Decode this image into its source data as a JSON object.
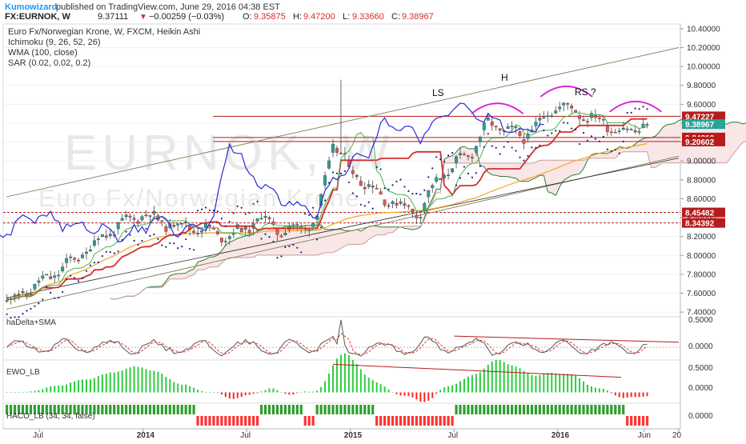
{
  "header": {
    "author": "Kumowizard",
    "published_text": "published on TradingView.com, June 29, 2016 04:38 EST",
    "symbol": "FX:EURNOK, W",
    "last": "9.37111",
    "change_arrow": "▼",
    "change": "−0.00259 (−0.03%)",
    "o_label": "O:",
    "o_value": "9.35875",
    "h_label": "H:",
    "h_value": "9.47200",
    "l_label": "L:",
    "l_value": "9.33660",
    "c_label": "C:",
    "c_value": "9.38967"
  },
  "legend": {
    "title": "Euro Fx/Norwegian Krone, W, FXCM, Heikin Ashi",
    "ichimoku": "Ichimoku (9, 26, 52, 26)",
    "wma": "WMA (100, close)",
    "sar": "SAR (0.02, 0.02, 0.2)"
  },
  "watermark": {
    "symbol": "EURNOK, W",
    "name": "Euro Fx/Norwegian Krone"
  },
  "annotations": {
    "ls": "LS",
    "h": "H",
    "rs": "RS ?"
  },
  "price_axis": {
    "ticks": [
      "10.40000",
      "10.20000",
      "10.00000",
      "9.80000",
      "9.60000",
      "9.40000",
      "9.20000",
      "9.00000",
      "8.80000",
      "8.60000",
      "8.40000",
      "8.20000",
      "8.00000",
      "7.80000",
      "7.60000",
      "7.40000"
    ],
    "tick_values": [
      10.4,
      10.2,
      10.0,
      9.8,
      9.6,
      9.4,
      9.2,
      9.0,
      8.8,
      8.6,
      8.4,
      8.2,
      8.0,
      7.8,
      7.6,
      7.4
    ],
    "labels": [
      {
        "value": "9.47227",
        "price": 9.47227,
        "color": "#b71c1c"
      },
      {
        "value": "9.38967",
        "price": 9.38967,
        "color": "#26a69a"
      },
      {
        "value": "9.24812",
        "price": 9.24812,
        "color": "#b71c1c"
      },
      {
        "value": "9.20602",
        "price": 9.20602,
        "color": "#b71c1c"
      },
      {
        "value": "8.45482",
        "price": 8.45482,
        "color": "#b71c1c"
      },
      {
        "value": "8.34392",
        "price": 8.34392,
        "color": "#b71c1c"
      }
    ]
  },
  "time_axis": {
    "labels": [
      "Jul",
      "2014",
      "Jul",
      "2015",
      "Jul",
      "2016",
      "Jun",
      "20"
    ]
  },
  "panes": {
    "hadelta": {
      "title": "haDelta+SMA",
      "ticks": [
        "0.5000",
        "0.0000"
      ]
    },
    "ewo": {
      "title": "EWO_LB",
      "ticks": [
        "0.5000",
        "0.0000"
      ]
    },
    "haco": {
      "title": "HACO_LB (34, 34, false)",
      "ticks": [
        "0.0000"
      ]
    }
  },
  "chart_data": {
    "type": "candlestick",
    "title": "Euro Fx/Norwegian Krone, W, FXCM, Heikin Ashi",
    "x_range": [
      "2013-05",
      "2016-08"
    ],
    "ylim": [
      7.35,
      10.45
    ],
    "price_series": [
      {
        "date": "2013-05",
        "price": 7.5
      },
      {
        "date": "2013-07",
        "price": 7.7
      },
      {
        "date": "2013-09",
        "price": 7.95
      },
      {
        "date": "2013-11",
        "price": 8.25
      },
      {
        "date": "2014-01",
        "price": 8.45
      },
      {
        "date": "2014-02",
        "price": 8.35
      },
      {
        "date": "2014-04",
        "price": 8.3
      },
      {
        "date": "2014-06",
        "price": 8.2
      },
      {
        "date": "2014-08",
        "price": 8.4
      },
      {
        "date": "2014-09",
        "price": 8.25
      },
      {
        "date": "2014-11",
        "price": 8.35
      },
      {
        "date": "2014-12",
        "price": 9.2
      },
      {
        "date": "2015-01",
        "price": 8.9
      },
      {
        "date": "2015-03",
        "price": 8.6
      },
      {
        "date": "2015-05",
        "price": 8.45
      },
      {
        "date": "2015-06",
        "price": 8.8
      },
      {
        "date": "2015-08",
        "price": 9.1
      },
      {
        "date": "2015-09",
        "price": 9.4
      },
      {
        "date": "2015-11",
        "price": 9.25
      },
      {
        "date": "2016-01",
        "price": 9.6
      },
      {
        "date": "2016-03",
        "price": 9.45
      },
      {
        "date": "2016-05",
        "price": 9.3
      },
      {
        "date": "2016-06",
        "price": 9.39
      }
    ],
    "horizontal_levels": [
      9.47227,
      9.24812,
      9.20602,
      8.45482,
      8.34392
    ],
    "pattern": [
      "LS",
      "H",
      "RS ?"
    ],
    "hadelta_range": [
      -0.25,
      0.6
    ],
    "ewo_range": [
      -0.2,
      0.6
    ]
  },
  "colors": {
    "bull": "#26a69a",
    "bear": "#ef5350",
    "ichimoku_base": "#d32f2f",
    "ichimoku_conv": "#4caf50",
    "lagging": "#2b2bd6",
    "wma": "#f5a623",
    "cloud": "#f8e3e3",
    "channel": "#888866",
    "hs_arc": "#d81bd8",
    "brand": "#2196f3"
  }
}
